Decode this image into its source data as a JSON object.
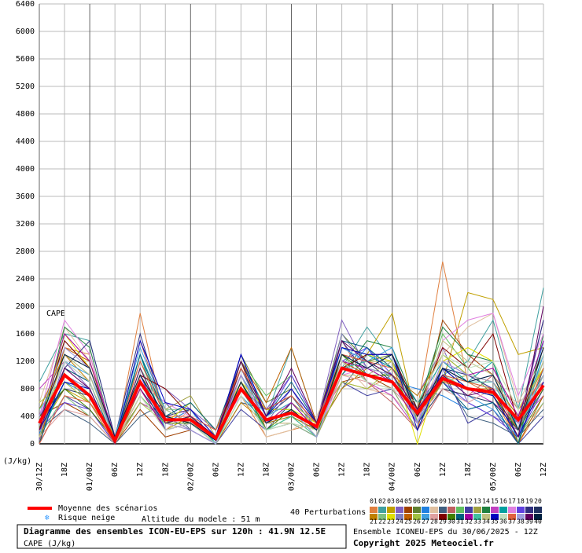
{
  "chart_data": {
    "type": "line",
    "annotation": "CAPE",
    "y_label": "(J/kg)",
    "categories": [
      "30/12Z",
      "18Z",
      "01/00Z",
      "06Z",
      "12Z",
      "18Z",
      "02/00Z",
      "06Z",
      "12Z",
      "18Z",
      "03/00Z",
      "06Z",
      "12Z",
      "18Z",
      "04/00Z",
      "06Z",
      "12Z",
      "18Z",
      "05/00Z",
      "06Z",
      "12Z"
    ],
    "ylim": [
      0,
      6400
    ],
    "yticks": [
      0,
      400,
      800,
      1200,
      1600,
      2000,
      2400,
      2800,
      3200,
      3600,
      4000,
      4400,
      4800,
      5200,
      5600,
      6000,
      6400
    ],
    "grid": true,
    "series": [
      {
        "name": "01",
        "color": "#e08040",
        "values": [
          100,
          1400,
          1300,
          0,
          1900,
          300,
          200,
          0,
          700,
          100,
          200,
          300,
          900,
          800,
          1000,
          500,
          2650,
          900,
          700,
          0,
          600
        ]
      },
      {
        "name": "02",
        "color": "#40a0a0",
        "values": [
          900,
          1600,
          1500,
          100,
          1300,
          500,
          300,
          50,
          1300,
          400,
          1400,
          300,
          1100,
          1700,
          1200,
          600,
          1000,
          1200,
          1800,
          500,
          2270
        ]
      },
      {
        "name": "03",
        "color": "#c0a000",
        "values": [
          200,
          800,
          600,
          0,
          700,
          200,
          400,
          100,
          1100,
          300,
          600,
          200,
          1400,
          1300,
          1900,
          300,
          900,
          2200,
          2100,
          1300,
          1400
        ]
      },
      {
        "name": "04",
        "color": "#8060c0",
        "values": [
          50,
          1200,
          800,
          0,
          1000,
          800,
          500,
          200,
          800,
          500,
          1000,
          300,
          1800,
          1100,
          1000,
          700,
          1400,
          600,
          400,
          200,
          1800
        ]
      },
      {
        "name": "05",
        "color": "#a04000",
        "values": [
          400,
          600,
          400,
          0,
          500,
          100,
          200,
          0,
          1200,
          200,
          300,
          100,
          900,
          1000,
          800,
          200,
          1800,
          1300,
          1000,
          300,
          1000
        ]
      },
      {
        "name": "06",
        "color": "#608030",
        "values": [
          300,
          1500,
          1100,
          50,
          600,
          400,
          300,
          100,
          1300,
          600,
          800,
          300,
          1600,
          1200,
          1300,
          400,
          1100,
          900,
          800,
          100,
          700
        ]
      },
      {
        "name": "07",
        "color": "#2080e0",
        "values": [
          150,
          900,
          700,
          0,
          1100,
          300,
          500,
          0,
          700,
          300,
          400,
          200,
          1000,
          1400,
          900,
          800,
          700,
          500,
          600,
          0,
          1500
        ]
      },
      {
        "name": "08",
        "color": "#e0c0a0",
        "values": [
          600,
          1700,
          1200,
          100,
          800,
          200,
          300,
          50,
          900,
          100,
          200,
          400,
          1200,
          800,
          700,
          300,
          1300,
          1700,
          1900,
          600,
          1300
        ]
      },
      {
        "name": "09",
        "color": "#406080",
        "values": [
          200,
          500,
          300,
          0,
          400,
          600,
          200,
          0,
          600,
          500,
          700,
          200,
          800,
          1300,
          1100,
          600,
          1000,
          400,
          300,
          100,
          500
        ]
      },
      {
        "name": "10",
        "color": "#c06060",
        "values": [
          100,
          1100,
          900,
          0,
          1500,
          400,
          400,
          100,
          1000,
          300,
          500,
          100,
          1500,
          900,
          600,
          200,
          800,
          700,
          1000,
          500,
          900
        ]
      },
      {
        "name": "11",
        "color": "#60c060",
        "values": [
          500,
          1300,
          1000,
          50,
          700,
          300,
          600,
          200,
          1200,
          700,
          1000,
          300,
          1100,
          1100,
          1000,
          500,
          1600,
          1100,
          700,
          200,
          1200
        ]
      },
      {
        "name": "12",
        "color": "#4040a0",
        "values": [
          0,
          700,
          500,
          0,
          900,
          200,
          300,
          0,
          500,
          200,
          300,
          100,
          900,
          700,
          800,
          400,
          1100,
          300,
          500,
          0,
          400
        ]
      },
      {
        "name": "13",
        "color": "#a0a040",
        "values": [
          300,
          1000,
          600,
          100,
          1200,
          500,
          700,
          100,
          1100,
          400,
          600,
          300,
          1300,
          1200,
          1200,
          300,
          900,
          1000,
          900,
          400,
          1100
        ]
      },
      {
        "name": "14",
        "color": "#208040",
        "values": [
          200,
          1700,
          1400,
          0,
          1000,
          300,
          400,
          50,
          800,
          200,
          400,
          200,
          1000,
          1500,
          1400,
          500,
          1700,
          1300,
          1200,
          0,
          1600
        ]
      },
      {
        "name": "15",
        "color": "#c040c0",
        "values": [
          800,
          1200,
          900,
          0,
          600,
          400,
          200,
          0,
          1000,
          300,
          800,
          300,
          1200,
          900,
          700,
          200,
          1000,
          800,
          600,
          300,
          700
        ]
      },
      {
        "name": "16",
        "color": "#00a0a0",
        "values": [
          100,
          900,
          800,
          0,
          1300,
          200,
          300,
          100,
          1200,
          500,
          500,
          200,
          1400,
          1300,
          1100,
          600,
          1200,
          900,
          1200,
          200,
          1300
        ]
      },
      {
        "name": "17",
        "color": "#e080e0",
        "values": [
          400,
          1800,
          1300,
          50,
          900,
          600,
          400,
          200,
          700,
          200,
          300,
          100,
          1000,
          1100,
          1300,
          300,
          1500,
          1800,
          1900,
          700,
          1600
        ]
      },
      {
        "name": "18",
        "color": "#6040e0",
        "values": [
          200,
          600,
          500,
          0,
          1000,
          200,
          300,
          0,
          1300,
          400,
          1000,
          300,
          1200,
          1400,
          1000,
          400,
          900,
          600,
          400,
          100,
          800
        ]
      },
      {
        "name": "19",
        "color": "#303080",
        "values": [
          0,
          1100,
          1500,
          100,
          1600,
          400,
          500,
          100,
          900,
          200,
          600,
          200,
          1500,
          1000,
          1200,
          500,
          1100,
          1000,
          800,
          300,
          1800
        ]
      },
      {
        "name": "20",
        "color": "#203060",
        "values": [
          300,
          800,
          700,
          0,
          800,
          300,
          400,
          50,
          1100,
          400,
          700,
          300,
          1100,
          1200,
          900,
          300,
          800,
          700,
          600,
          200,
          900
        ]
      },
      {
        "name": "21",
        "color": "#c08000",
        "values": [
          500,
          1300,
          900,
          0,
          700,
          200,
          300,
          0,
          600,
          300,
          400,
          200,
          800,
          1100,
          1000,
          700,
          1300,
          1000,
          900,
          400,
          1000
        ]
      },
      {
        "name": "22",
        "color": "#80c080",
        "values": [
          100,
          700,
          400,
          0,
          1100,
          500,
          500,
          100,
          1000,
          200,
          300,
          100,
          1300,
          900,
          800,
          200,
          1000,
          800,
          700,
          100,
          600
        ]
      },
      {
        "name": "23",
        "color": "#e0e000",
        "values": [
          200,
          1600,
          1100,
          50,
          900,
          300,
          600,
          200,
          900,
          500,
          500,
          300,
          1100,
          1300,
          1200,
          0,
          1200,
          1400,
          1200,
          500,
          1100
        ]
      },
      {
        "name": "24",
        "color": "#8080c0",
        "values": [
          400,
          1000,
          800,
          0,
          1200,
          400,
          200,
          0,
          1100,
          300,
          800,
          200,
          1600,
          1100,
          1000,
          500,
          1100,
          900,
          1000,
          300,
          1200
        ]
      },
      {
        "name": "25",
        "color": "#c06000",
        "values": [
          0,
          1400,
          1200,
          0,
          800,
          200,
          300,
          100,
          1200,
          600,
          1400,
          300,
          1200,
          1000,
          900,
          400,
          900,
          800,
          800,
          0,
          700
        ]
      },
      {
        "name": "26",
        "color": "#a0c040",
        "values": [
          600,
          900,
          600,
          0,
          600,
          300,
          400,
          0,
          700,
          200,
          400,
          100,
          900,
          800,
          1100,
          600,
          1300,
          1000,
          900,
          200,
          1000
        ]
      },
      {
        "name": "27",
        "color": "#40a0e0",
        "values": [
          300,
          1200,
          1000,
          100,
          1400,
          500,
          300,
          50,
          1000,
          400,
          600,
          200,
          1400,
          1200,
          1400,
          300,
          1000,
          700,
          500,
          100,
          1300
        ]
      },
      {
        "name": "28",
        "color": "#e0a0a0",
        "values": [
          100,
          500,
          400,
          0,
          700,
          200,
          500,
          100,
          800,
          300,
          300,
          200,
          1000,
          900,
          800,
          400,
          800,
          600,
          800,
          600,
          900
        ]
      },
      {
        "name": "29",
        "color": "#800000",
        "values": [
          200,
          1500,
          1100,
          0,
          1000,
          800,
          400,
          100,
          1100,
          500,
          700,
          300,
          1100,
          1300,
          1300,
          500,
          1400,
          1100,
          1600,
          300,
          1400
        ]
      },
      {
        "name": "30",
        "color": "#408000",
        "values": [
          400,
          800,
          500,
          50,
          900,
          300,
          300,
          0,
          900,
          200,
          500,
          100,
          1300,
          1000,
          1000,
          400,
          1100,
          800,
          700,
          200,
          800
        ]
      },
      {
        "name": "31",
        "color": "#006080",
        "values": [
          0,
          1100,
          900,
          0,
          1300,
          400,
          600,
          200,
          1200,
          400,
          900,
          300,
          1500,
          1400,
          1100,
          600,
          900,
          500,
          600,
          0,
          1100
        ]
      },
      {
        "name": "32",
        "color": "#a000a0",
        "values": [
          300,
          1600,
          1200,
          100,
          800,
          200,
          300,
          50,
          1000,
          300,
          600,
          200,
          1200,
          1100,
          900,
          300,
          1200,
          1000,
          1100,
          400,
          1500
        ]
      },
      {
        "name": "33",
        "color": "#40c0a0",
        "values": [
          500,
          1000,
          700,
          0,
          1100,
          300,
          400,
          0,
          800,
          200,
          400,
          100,
          1100,
          1200,
          1000,
          500,
          1000,
          900,
          900,
          200,
          1000
        ]
      },
      {
        "name": "34",
        "color": "#c0c080",
        "values": [
          100,
          1300,
          1000,
          0,
          1000,
          500,
          300,
          100,
          900,
          300,
          300,
          200,
          1000,
          1000,
          1200,
          400,
          1500,
          1200,
          1000,
          300,
          1200
        ]
      },
      {
        "name": "35",
        "color": "#0000c0",
        "values": [
          200,
          900,
          800,
          0,
          1500,
          600,
          500,
          100,
          1300,
          400,
          800,
          300,
          1400,
          1300,
          1300,
          200,
          1100,
          800,
          700,
          100,
          900
        ]
      },
      {
        "name": "36",
        "color": "#c0e0c0",
        "values": [
          300,
          1200,
          900,
          50,
          700,
          200,
          300,
          0,
          700,
          200,
          300,
          200,
          1200,
          900,
          800,
          600,
          1300,
          1100,
          1200,
          500,
          1300
        ]
      },
      {
        "name": "37",
        "color": "#e06040",
        "values": [
          0,
          700,
          600,
          0,
          1200,
          400,
          400,
          200,
          1100,
          500,
          700,
          300,
          1300,
          1200,
          1100,
          400,
          1000,
          900,
          800,
          200,
          1100
        ]
      },
      {
        "name": "38",
        "color": "#a0a0e0",
        "values": [
          400,
          1400,
          1100,
          0,
          900,
          300,
          200,
          0,
          1000,
          300,
          500,
          100,
          1100,
          1100,
          1000,
          300,
          1200,
          1000,
          900,
          300,
          1000
        ]
      },
      {
        "name": "39",
        "color": "#600060",
        "values": [
          200,
          1100,
          800,
          0,
          1100,
          300,
          400,
          100,
          1200,
          400,
          1100,
          300,
          1500,
          1200,
          1000,
          500,
          1000,
          700,
          800,
          100,
          2000
        ]
      },
      {
        "name": "40",
        "color": "#002040",
        "values": [
          300,
          1300,
          1100,
          100,
          1000,
          400,
          300,
          50,
          900,
          300,
          500,
          200,
          1300,
          1100,
          1300,
          400,
          1100,
          900,
          1000,
          200,
          1400
        ]
      },
      {
        "name": "Moyenne des scénarios",
        "color": "#ff0000",
        "values": [
          300,
          1000,
          700,
          50,
          900,
          350,
          350,
          80,
          800,
          350,
          450,
          250,
          1100,
          1000,
          900,
          450,
          950,
          800,
          750,
          350,
          850
        ]
      }
    ],
    "perturbations_label": "40 Perturbations",
    "snow_label": "Risque neige",
    "altitude_label": "Altitude du modele : 51 m",
    "diagram_title": "Diagramme des ensembles ICON-EU-EPS sur 120h : 41.9N 12.5E",
    "subtitle": "CAPE (J/kg)",
    "run_label": "Ensemble ICONEU-EPS du 30/06/2025 - 12Z",
    "copyright": "Copyright 2025 Meteociel.fr"
  }
}
